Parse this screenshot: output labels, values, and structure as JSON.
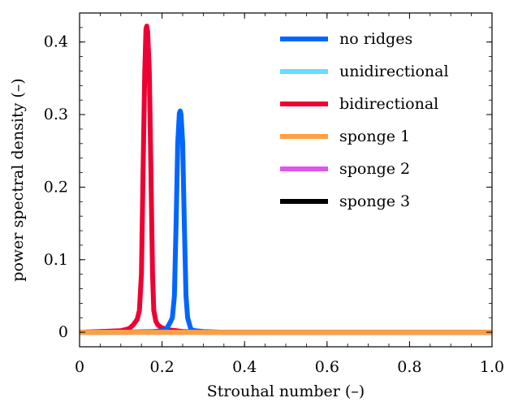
{
  "chart_data": {
    "type": "line",
    "xlabel": "Strouhal number (–)",
    "ylabel": "power spectral density (–)",
    "xlim": [
      0,
      1.0
    ],
    "ylim": [
      -0.02,
      0.44
    ],
    "xticks": [
      0,
      0.2,
      0.4,
      0.6,
      0.8,
      1.0
    ],
    "xtick_labels": [
      "0",
      "0.2",
      "0.4",
      "0.6",
      "0.8",
      "1.0"
    ],
    "yticks": [
      0,
      0.1,
      0.2,
      0.3,
      0.4
    ],
    "ytick_labels": [
      "0",
      "0.1",
      "0.2",
      "0.3",
      "0.4"
    ],
    "legend_position": "top-right",
    "grid": false,
    "series": [
      {
        "name": "no ridges",
        "color": "#0066ff",
        "x": [
          0,
          0.1,
          0.18,
          0.2,
          0.21,
          0.22,
          0.225,
          0.23,
          0.234,
          0.238,
          0.242,
          0.244,
          0.246,
          0.25,
          0.254,
          0.258,
          0.262,
          0.266,
          0.27,
          0.28,
          0.3,
          0.35,
          0.5,
          1.0
        ],
        "y": [
          0,
          0,
          0.001,
          0.002,
          0.004,
          0.014,
          0.02,
          0.05,
          0.15,
          0.26,
          0.302,
          0.305,
          0.3,
          0.26,
          0.15,
          0.05,
          0.02,
          0.012,
          0.004,
          0.002,
          0.001,
          0,
          0,
          0
        ]
      },
      {
        "name": "unidirectional",
        "color": "#66ddff",
        "x": [
          0,
          1.0
        ],
        "y": [
          0,
          0
        ]
      },
      {
        "name": "bidirectional",
        "color": "#ee0033",
        "x": [
          0,
          0.05,
          0.1,
          0.12,
          0.13,
          0.14,
          0.145,
          0.15,
          0.154,
          0.158,
          0.161,
          0.163,
          0.165,
          0.169,
          0.173,
          0.177,
          0.18,
          0.185,
          0.19,
          0.2,
          0.22,
          0.25,
          0.3,
          1.0
        ],
        "y": [
          0,
          0.001,
          0.002,
          0.005,
          0.01,
          0.018,
          0.03,
          0.08,
          0.22,
          0.36,
          0.418,
          0.422,
          0.415,
          0.36,
          0.22,
          0.08,
          0.03,
          0.015,
          0.01,
          0.006,
          0.003,
          0.001,
          0,
          0
        ]
      },
      {
        "name": "sponge 1",
        "color": "#ffa040",
        "x": [
          0,
          1.0
        ],
        "y": [
          0,
          0
        ]
      },
      {
        "name": "sponge 2",
        "color": "#dd55ee",
        "x": [
          0,
          1.0
        ],
        "y": [
          0,
          0
        ]
      },
      {
        "name": "sponge 3",
        "color": "#000000",
        "x": [
          0,
          1.0
        ],
        "y": [
          0,
          0
        ]
      }
    ]
  }
}
